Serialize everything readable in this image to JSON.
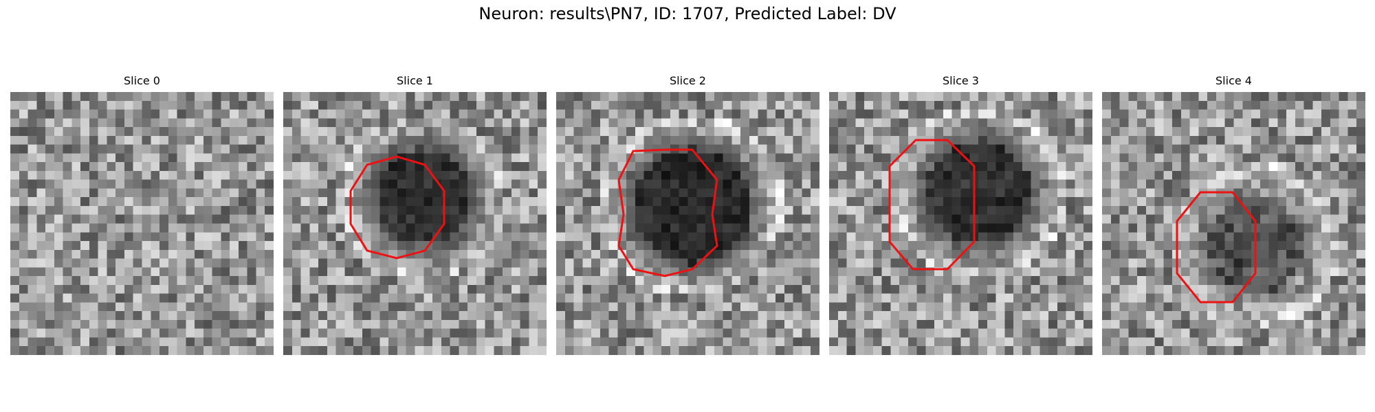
{
  "figure": {
    "title": "Neuron: results\\PN7, ID: 1707, Predicted Label: DV",
    "outline_color": "#ee1111"
  },
  "slices": [
    {
      "title": "Slice 0",
      "seed": 11,
      "darkness": 0.0,
      "has_outline": false
    },
    {
      "title": "Slice 1",
      "seed": 23,
      "darkness": 0.85,
      "has_outline": true
    },
    {
      "title": "Slice 2",
      "seed": 37,
      "darkness": 0.9,
      "has_outline": true
    },
    {
      "title": "Slice 3",
      "seed": 41,
      "darkness": 0.85,
      "has_outline": true
    },
    {
      "title": "Slice 4",
      "seed": 53,
      "darkness": 0.55,
      "has_outline": true
    }
  ]
}
